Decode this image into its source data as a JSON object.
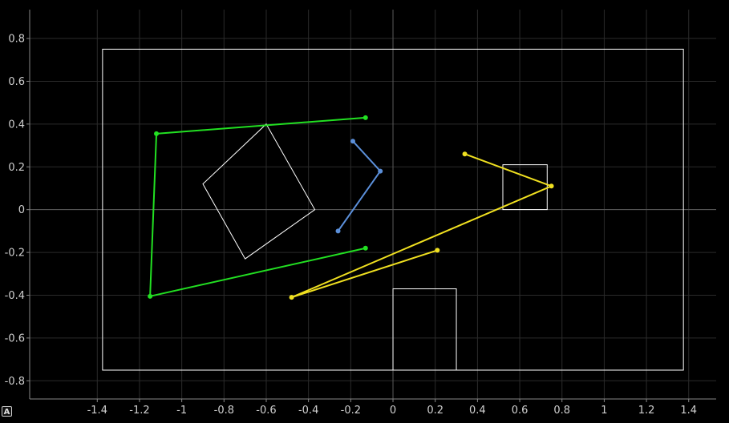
{
  "controls": {
    "auto_range_label": "A"
  },
  "chart_data": {
    "type": "line",
    "title": "",
    "xlabel": "",
    "ylabel": "",
    "xlim": [
      -1.72,
      1.53
    ],
    "ylim": [
      -0.885,
      0.935
    ],
    "grid": true,
    "x_ticks": [
      -1.4,
      -1.2,
      -1,
      -0.8,
      -0.6,
      -0.4,
      -0.2,
      0,
      0.2,
      0.4,
      0.6,
      0.8,
      1,
      1.2,
      1.4
    ],
    "x_tick_labels": [
      "-1.4",
      "-1.2",
      "-1",
      "-0.8",
      "-0.6",
      "-0.4",
      "-0.2",
      "0",
      "0.2",
      "0.4",
      "0.6",
      "0.8",
      "1",
      "1.2",
      "1.4"
    ],
    "y_ticks": [
      0.8,
      0.6,
      0.4,
      0.2,
      0,
      -0.2,
      -0.4,
      -0.6,
      -0.8
    ],
    "y_tick_labels": [
      "0.8",
      "0.6",
      "0.4",
      "0.2",
      "0",
      "-0.2",
      "-0.4",
      "-0.6",
      "-0.8"
    ],
    "shapes": [
      {
        "name": "boundary",
        "color": "#ffffff",
        "closed": true,
        "points": [
          [
            -1.375,
            0.75
          ],
          [
            1.375,
            0.75
          ],
          [
            1.375,
            -0.75
          ],
          [
            -1.375,
            -0.75
          ]
        ]
      },
      {
        "name": "rotated-square",
        "color": "#ffffff",
        "closed": true,
        "points": [
          [
            -0.6,
            0.4
          ],
          [
            -0.37,
            0.0
          ],
          [
            -0.7,
            -0.23
          ],
          [
            -0.9,
            0.12
          ]
        ]
      },
      {
        "name": "small-rect-right",
        "color": "#ffffff",
        "closed": true,
        "points": [
          [
            0.52,
            0.21
          ],
          [
            0.73,
            0.21
          ],
          [
            0.73,
            0.0
          ],
          [
            0.52,
            0.0
          ]
        ]
      },
      {
        "name": "bottom-rect",
        "color": "#ffffff",
        "closed": false,
        "points": [
          [
            0.0,
            -0.75
          ],
          [
            0.0,
            -0.37
          ],
          [
            0.3,
            -0.37
          ],
          [
            0.3,
            -0.75
          ]
        ]
      }
    ],
    "series": [
      {
        "color": "#22e022",
        "markers": true,
        "points": [
          [
            -0.13,
            0.43
          ],
          [
            -1.12,
            0.355
          ],
          [
            -1.15,
            -0.405
          ],
          [
            -0.13,
            -0.18
          ]
        ]
      },
      {
        "color": "#5b8fd9",
        "markers": true,
        "points": [
          [
            -0.19,
            0.32
          ],
          [
            -0.06,
            0.18
          ],
          [
            -0.26,
            -0.1
          ]
        ]
      },
      {
        "color": "#f0e020",
        "markers": true,
        "points": [
          [
            0.34,
            0.26
          ],
          [
            0.75,
            0.11
          ],
          [
            -0.48,
            -0.41
          ],
          [
            0.21,
            -0.19
          ]
        ]
      }
    ]
  }
}
